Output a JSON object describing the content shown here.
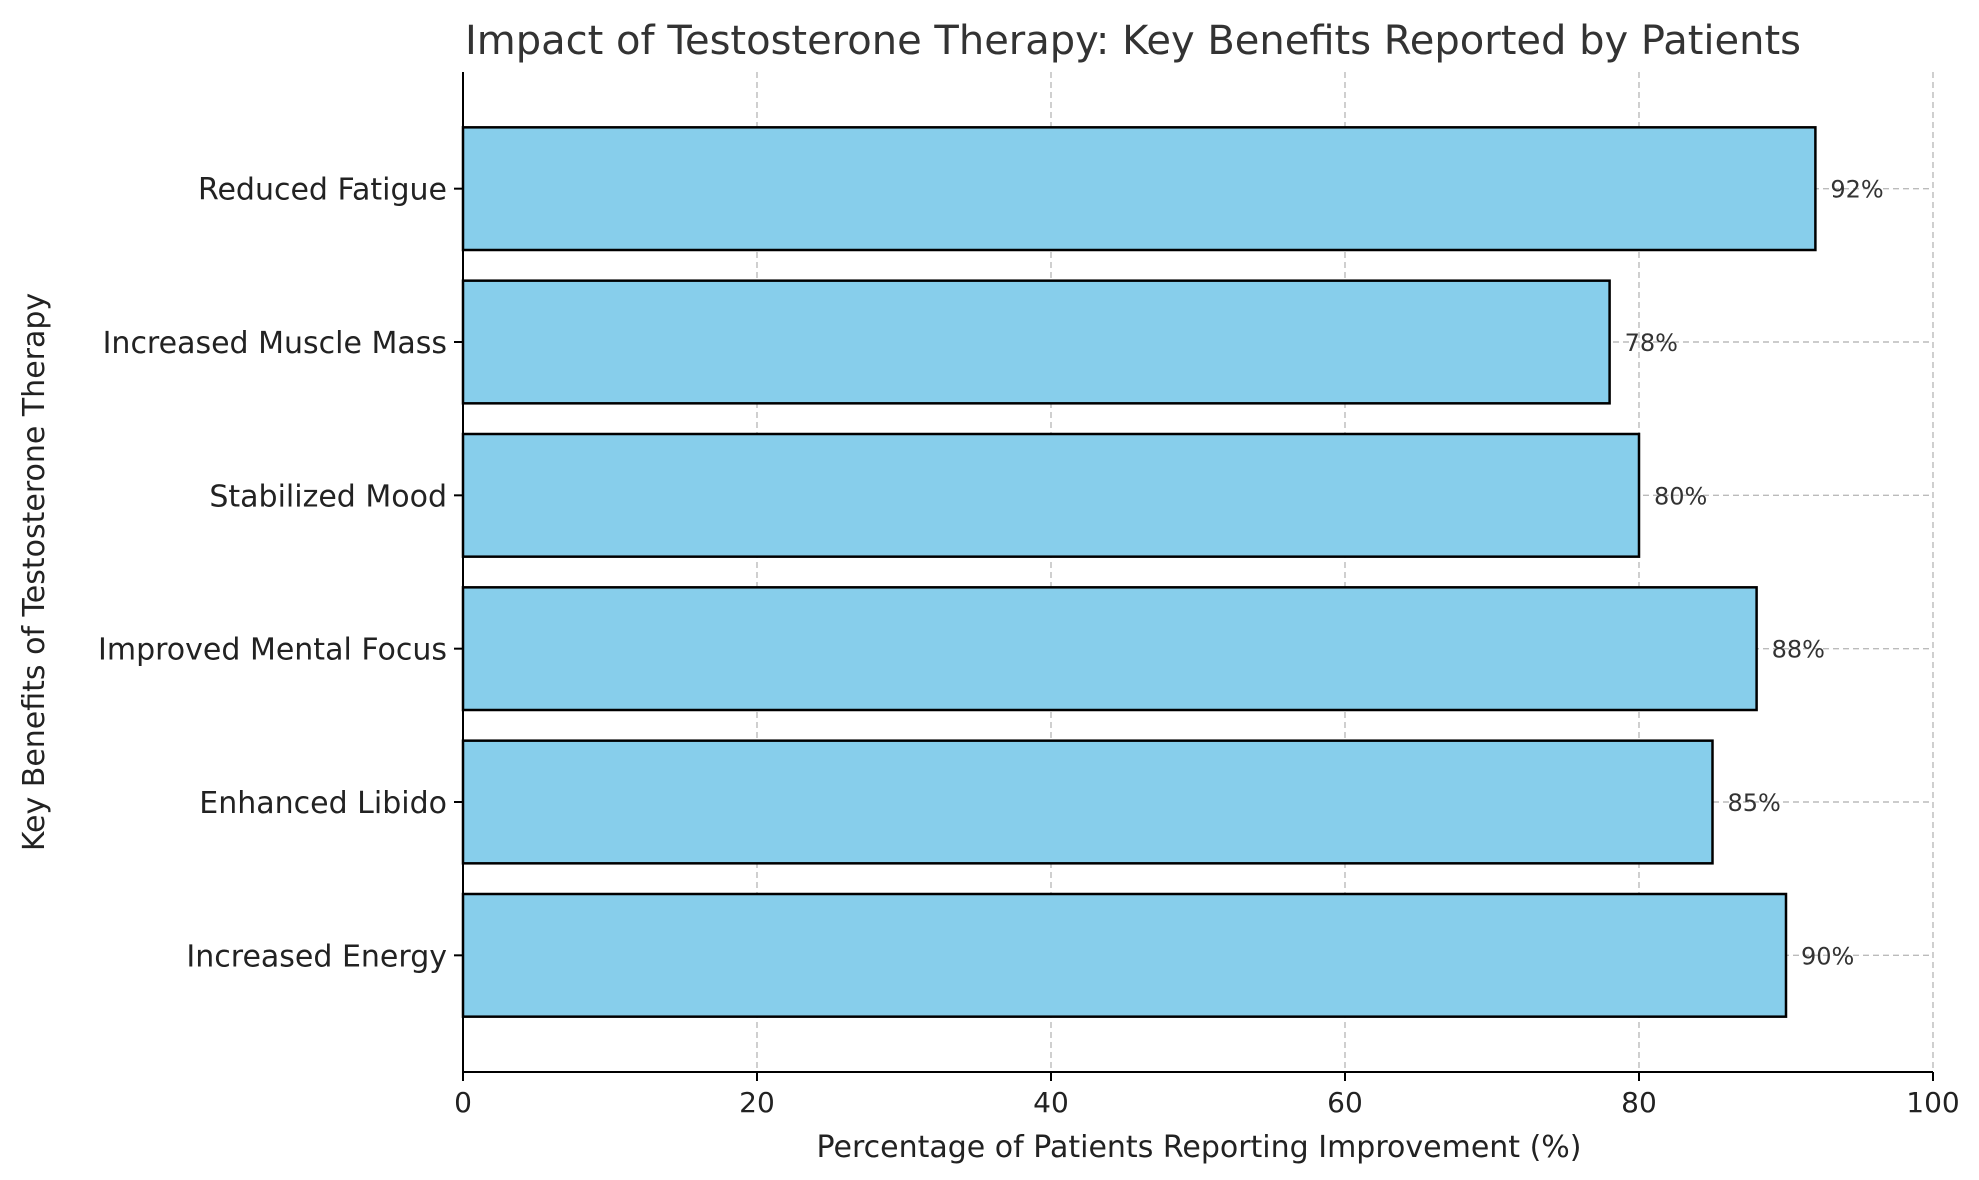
{
  "chart_data": {
    "type": "bar",
    "orientation": "horizontal",
    "title": "Impact of Testosterone Therapy: Key Benefits Reported by Patients",
    "xlabel": "Percentage of Patients Reporting Improvement (%)",
    "ylabel": "Key Benefits of Testosterone Therapy",
    "xlim": [
      0,
      100
    ],
    "xticks": [
      0,
      20,
      40,
      60,
      80,
      100
    ],
    "grid": true,
    "bar_color": "#87CEEB",
    "bar_edge_color": "#000000",
    "categories": [
      "Increased Energy",
      "Enhanced Libido",
      "Improved Mental Focus",
      "Stabilized Mood",
      "Increased Muscle Mass",
      "Reduced Fatigue"
    ],
    "values": [
      90,
      85,
      88,
      80,
      78,
      92
    ],
    "data_labels": [
      "90%",
      "85%",
      "88%",
      "80%",
      "78%",
      "92%"
    ]
  }
}
